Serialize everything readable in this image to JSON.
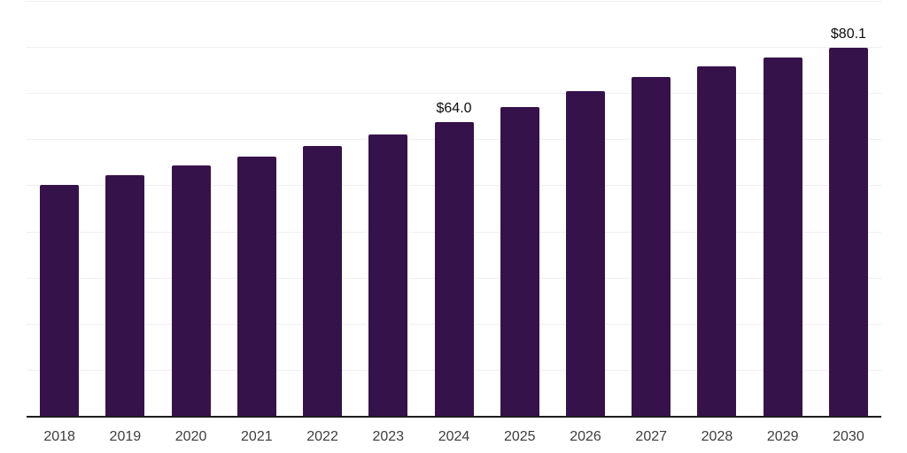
{
  "chart_data": {
    "type": "bar",
    "title": "",
    "xlabel": "",
    "ylabel": "",
    "categories": [
      "2018",
      "2019",
      "2020",
      "2021",
      "2022",
      "2023",
      "2024",
      "2025",
      "2026",
      "2027",
      "2028",
      "2029",
      "2030"
    ],
    "values": [
      50.2,
      52.3,
      54.5,
      56.5,
      58.8,
      61.3,
      64.0,
      67.2,
      70.7,
      73.7,
      76.0,
      78.0,
      80.1
    ],
    "data_labels": [
      {
        "category": "2024",
        "text": "$64.0"
      },
      {
        "category": "2030",
        "text": "$80.1"
      }
    ],
    "ylim": [
      0,
      90
    ],
    "gridline_step": 10,
    "grid": true,
    "legend": false,
    "y_tick_labels_visible": false,
    "colors": {
      "bar": "#36124B",
      "gridline": "#efefef",
      "axis_line": "#1c1c1c",
      "data_label": "#0d0d0d",
      "tick_label": "#3d3d3d",
      "background": "#ffffff"
    }
  }
}
